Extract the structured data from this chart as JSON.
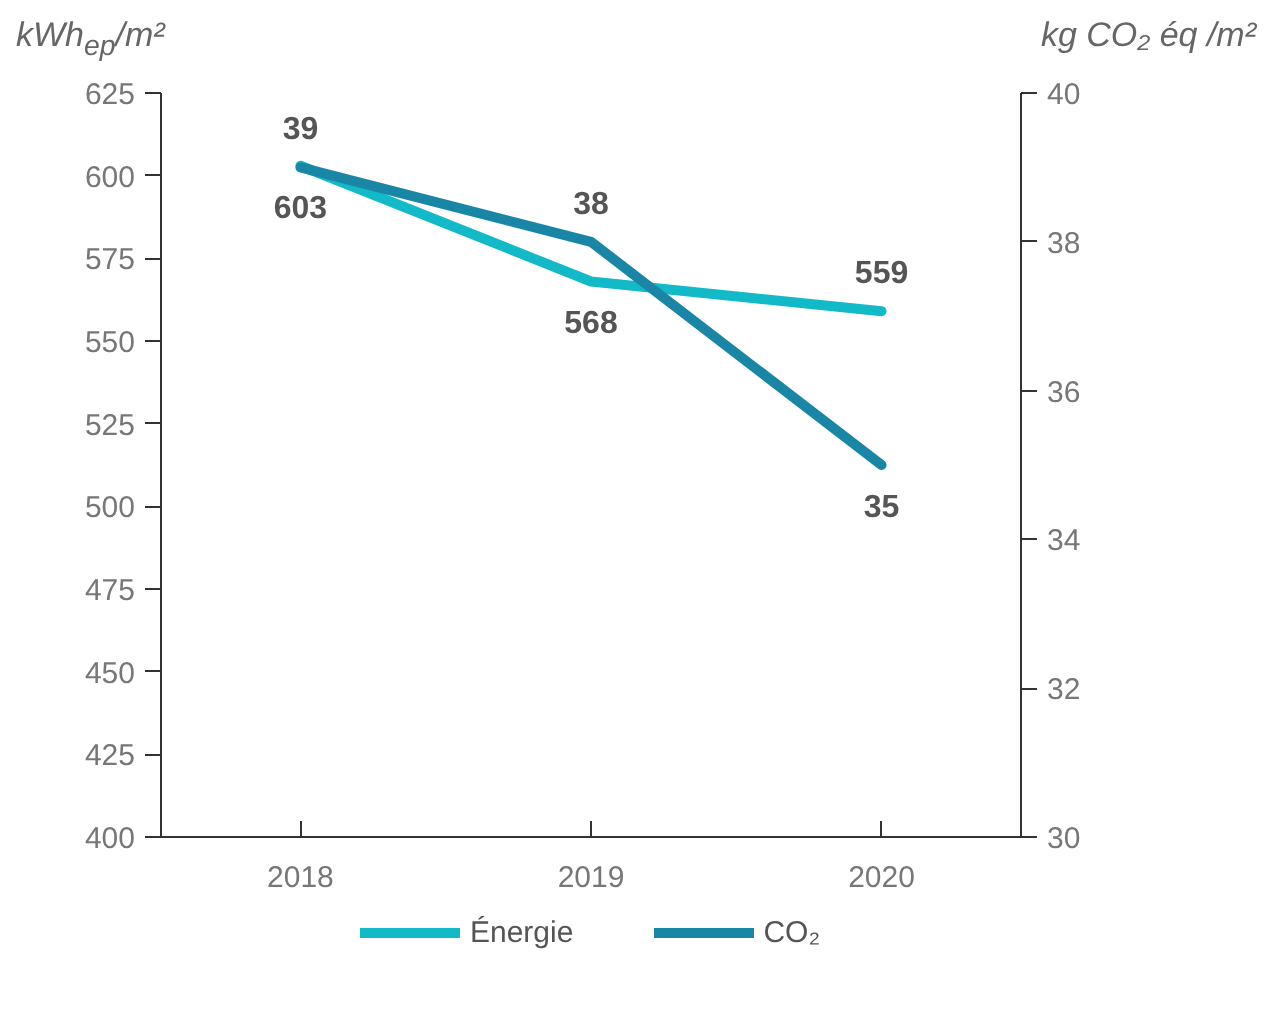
{
  "chart_data": {
    "type": "line",
    "categories": [
      "2018",
      "2019",
      "2020"
    ],
    "ylabel": "kWh$_{ep}$/m²",
    "y2label": "kg CO₂ éq /m²",
    "ylim": [
      400,
      625
    ],
    "yticks": [
      400,
      425,
      450,
      475,
      500,
      525,
      550,
      575,
      600,
      625
    ],
    "y2lim": [
      30,
      40
    ],
    "y2ticks": [
      30,
      32,
      34,
      36,
      38,
      40
    ],
    "series": [
      {
        "name": "Énergie",
        "color": "#12b9c6",
        "values": [
          603,
          568,
          559
        ]
      },
      {
        "name": "CO₂",
        "color": "#1a86a6",
        "values": [
          39,
          38,
          35
        ],
        "axis": "y2"
      }
    ],
    "data_labels": true,
    "legend": "bottom",
    "grid": false
  }
}
